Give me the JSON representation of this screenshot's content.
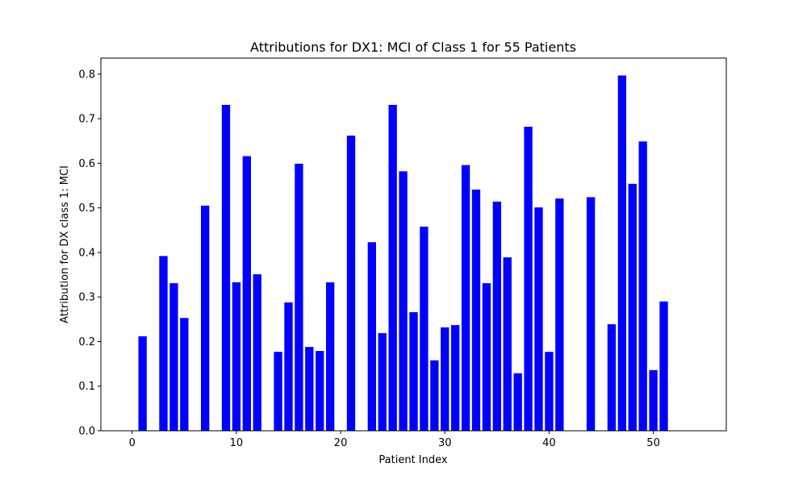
{
  "chart_data": {
    "type": "bar",
    "title": "Attributions for DX1: MCI of Class 1 for 55 Patients",
    "xlabel": "Patient Index",
    "ylabel": "Attribution for DX class 1: MCI",
    "xlim": [
      -3,
      57
    ],
    "ylim": [
      0,
      0.836
    ],
    "x_ticks": [
      0,
      10,
      20,
      30,
      40,
      50
    ],
    "y_ticks": [
      0.0,
      0.1,
      0.2,
      0.3,
      0.4,
      0.5,
      0.6,
      0.7,
      0.8
    ],
    "bar_width": 0.8,
    "color": "#0000ff",
    "grid": false,
    "x": [
      0,
      1,
      2,
      3,
      4,
      5,
      6,
      7,
      8,
      9,
      10,
      11,
      12,
      13,
      14,
      15,
      16,
      17,
      18,
      19,
      20,
      21,
      22,
      23,
      24,
      25,
      26,
      27,
      28,
      29,
      30,
      31,
      32,
      33,
      34,
      35,
      36,
      37,
      38,
      39,
      40,
      41,
      42,
      43,
      44,
      45,
      46,
      47,
      48,
      49,
      50,
      51,
      52,
      53,
      54
    ],
    "values": [
      0,
      0.212,
      0,
      0.392,
      0.331,
      0.253,
      0,
      0.505,
      0,
      0.731,
      0.333,
      0.616,
      0.351,
      0,
      0.177,
      0.288,
      0.599,
      0.188,
      0.179,
      0.333,
      0,
      0.662,
      0,
      0.423,
      0.219,
      0.731,
      0.582,
      0.266,
      0.458,
      0.158,
      0.232,
      0.237,
      0.596,
      0.541,
      0.331,
      0.514,
      0.389,
      0.129,
      0.682,
      0.501,
      0.177,
      0.521,
      0,
      0,
      0.524,
      0,
      0.239,
      0.797,
      0.554,
      0.649,
      0.136,
      0.29,
      0,
      0,
      0
    ]
  }
}
